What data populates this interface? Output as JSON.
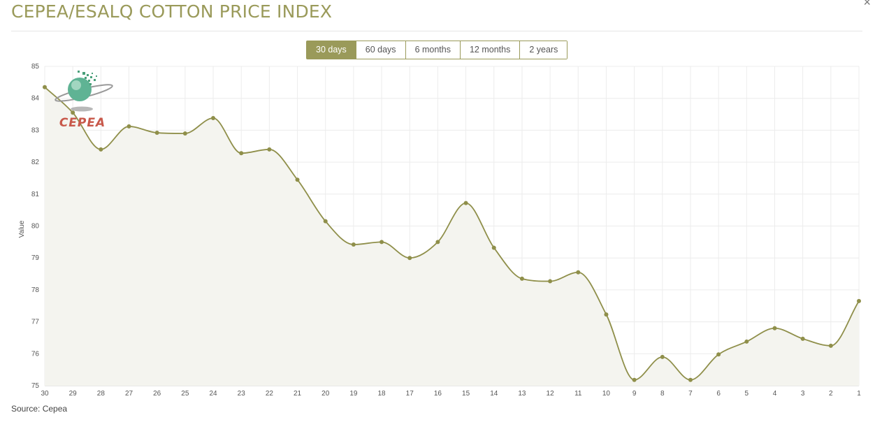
{
  "header": {
    "title": "CEPEA/ESALQ COTTON PRICE INDEX",
    "close_glyph": "×"
  },
  "range_tabs": {
    "items": [
      {
        "label": "30 days",
        "active": true
      },
      {
        "label": "60 days",
        "active": false
      },
      {
        "label": "6 months",
        "active": false
      },
      {
        "label": "12 months",
        "active": false
      },
      {
        "label": "2 years",
        "active": false
      }
    ]
  },
  "logo": {
    "text": "CEPEA"
  },
  "footer": {
    "source": "Source: Cepea"
  },
  "colors": {
    "accent": "#9a9a5a",
    "line": "#8f8f4a",
    "area": "#f4f4ef",
    "grid": "#ececec",
    "logo_red": "#c8584a",
    "logo_green": "#4aa07a"
  },
  "chart_data": {
    "type": "area",
    "title": "",
    "xlabel": "",
    "ylabel": "Value",
    "ylim": [
      75,
      85
    ],
    "yticks": [
      75,
      76,
      77,
      78,
      79,
      80,
      81,
      82,
      83,
      84,
      85
    ],
    "grid": true,
    "categories": [
      "30",
      "29",
      "28",
      "27",
      "26",
      "25",
      "24",
      "23",
      "22",
      "21",
      "20",
      "19",
      "18",
      "17",
      "16",
      "15",
      "14",
      "13",
      "12",
      "11",
      "10",
      "9",
      "8",
      "7",
      "6",
      "5",
      "4",
      "3",
      "2",
      "1"
    ],
    "series": [
      {
        "values": [
          84.35,
          83.55,
          82.4,
          83.12,
          82.92,
          82.9,
          83.38,
          82.28,
          82.4,
          81.45,
          80.15,
          79.42,
          79.5,
          79.0,
          79.5,
          80.72,
          79.32,
          78.35,
          78.27,
          78.55,
          77.23,
          75.18,
          75.9,
          75.18,
          75.98,
          76.38,
          76.8,
          76.47,
          76.25,
          77.65
        ]
      }
    ]
  }
}
